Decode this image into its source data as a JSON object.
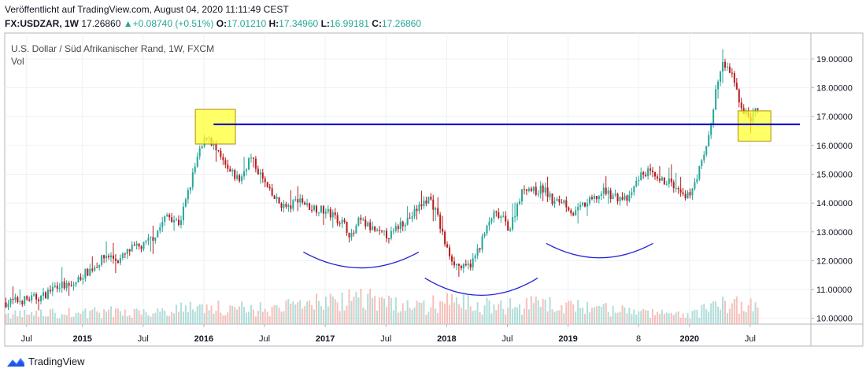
{
  "header": {
    "published": "Veröffentlicht auf TradingView.com, August 04, 2020 11:11:49 CEST",
    "symbol": "FX:USDZAR, 1W",
    "price": "17.26860",
    "change": "+0.08740 (+0.51%)",
    "o_label": "O:",
    "o_value": "17.01210",
    "h_label": "H:",
    "h_value": "17.34960",
    "l_label": "L:",
    "l_value": "16.99181",
    "c_label": "C:",
    "c_value": "17.26860"
  },
  "footer": {
    "brand": "TradingView"
  },
  "colors": {
    "up": "#26a69a",
    "down": "#b71c1c",
    "line": "#0000cc",
    "box": "#ffff33",
    "arc": "#1e22d4"
  },
  "chart_data": {
    "type": "candlestick",
    "title": "U.S. Dollar / Süd Afrikanischer Rand, 1W, FXCM",
    "subtitle": "Vol",
    "y_ticks": [
      "19.00000",
      "18.00000",
      "17.00000",
      "16.00000",
      "15.00000",
      "14.00000",
      "13.00000",
      "12.00000",
      "11.00000",
      "10.00000"
    ],
    "ylim": [
      9.8,
      19.9
    ],
    "x_ticks": [
      {
        "t": 2014.54,
        "label": "Jul"
      },
      {
        "t": 2015.0,
        "label": "2015"
      },
      {
        "t": 2015.5,
        "label": "Jul"
      },
      {
        "t": 2016.0,
        "label": "2016"
      },
      {
        "t": 2016.5,
        "label": "Jul"
      },
      {
        "t": 2017.0,
        "label": "2017"
      },
      {
        "t": 2017.5,
        "label": "Jul"
      },
      {
        "t": 2018.0,
        "label": "2018"
      },
      {
        "t": 2018.5,
        "label": "Jul"
      },
      {
        "t": 2019.0,
        "label": "2019"
      },
      {
        "t": 2019.58,
        "label": "8"
      },
      {
        "t": 2020.0,
        "label": "2020"
      },
      {
        "t": 2020.5,
        "label": "Jul"
      }
    ],
    "xlim": [
      2014.36,
      2021.0
    ],
    "price_path": [
      [
        2014.37,
        10.55
      ],
      [
        2014.54,
        10.65
      ],
      [
        2014.67,
        10.75
      ],
      [
        2014.8,
        11.2
      ],
      [
        2014.9,
        11.05
      ],
      [
        2015.0,
        11.5
      ],
      [
        2015.1,
        11.8
      ],
      [
        2015.2,
        12.2
      ],
      [
        2015.3,
        12.0
      ],
      [
        2015.4,
        12.4
      ],
      [
        2015.5,
        12.5
      ],
      [
        2015.6,
        12.9
      ],
      [
        2015.7,
        13.6
      ],
      [
        2015.8,
        13.3
      ],
      [
        2015.88,
        14.5
      ],
      [
        2015.95,
        15.6
      ],
      [
        2016.03,
        16.4
      ],
      [
        2016.1,
        15.8
      ],
      [
        2016.2,
        15.1
      ],
      [
        2016.3,
        14.8
      ],
      [
        2016.38,
        15.6
      ],
      [
        2016.45,
        15.1
      ],
      [
        2016.55,
        14.3
      ],
      [
        2016.62,
        14.0
      ],
      [
        2016.7,
        13.8
      ],
      [
        2016.78,
        14.2
      ],
      [
        2016.85,
        13.9
      ],
      [
        2016.95,
        13.8
      ],
      [
        2017.05,
        13.6
      ],
      [
        2017.15,
        13.3
      ],
      [
        2017.22,
        12.8
      ],
      [
        2017.28,
        13.4
      ],
      [
        2017.35,
        13.2
      ],
      [
        2017.45,
        12.9
      ],
      [
        2017.55,
        12.9
      ],
      [
        2017.62,
        13.3
      ],
      [
        2017.7,
        13.5
      ],
      [
        2017.78,
        13.9
      ],
      [
        2017.86,
        14.2
      ],
      [
        2017.92,
        13.6
      ],
      [
        2018.0,
        12.4
      ],
      [
        2018.07,
        11.9
      ],
      [
        2018.15,
        11.7
      ],
      [
        2018.22,
        12.0
      ],
      [
        2018.3,
        12.8
      ],
      [
        2018.38,
        13.6
      ],
      [
        2018.45,
        13.5
      ],
      [
        2018.52,
        13.1
      ],
      [
        2018.6,
        14.2
      ],
      [
        2018.65,
        14.6
      ],
      [
        2018.72,
        14.4
      ],
      [
        2018.8,
        14.5
      ],
      [
        2018.88,
        14.0
      ],
      [
        2018.96,
        14.1
      ],
      [
        2019.05,
        13.6
      ],
      [
        2019.12,
        13.9
      ],
      [
        2019.2,
        14.1
      ],
      [
        2019.3,
        14.4
      ],
      [
        2019.4,
        14.2
      ],
      [
        2019.5,
        14.1
      ],
      [
        2019.58,
        14.9
      ],
      [
        2019.66,
        15.1
      ],
      [
        2019.74,
        14.7
      ],
      [
        2019.82,
        14.8
      ],
      [
        2019.9,
        14.4
      ],
      [
        2019.97,
        14.1
      ],
      [
        2020.03,
        14.6
      ],
      [
        2020.12,
        15.6
      ],
      [
        2020.18,
        16.8
      ],
      [
        2020.22,
        18.0
      ],
      [
        2020.27,
        18.8
      ],
      [
        2020.33,
        18.6
      ],
      [
        2020.38,
        18.0
      ],
      [
        2020.43,
        17.3
      ],
      [
        2020.5,
        16.9
      ],
      [
        2020.54,
        17.2
      ],
      [
        2020.58,
        17.27
      ]
    ],
    "volume_path": [
      [
        2014.37,
        0.3
      ],
      [
        2015.0,
        0.35
      ],
      [
        2015.5,
        0.4
      ],
      [
        2016.0,
        0.55
      ],
      [
        2016.5,
        0.45
      ],
      [
        2017.0,
        0.7
      ],
      [
        2017.3,
        0.9
      ],
      [
        2017.6,
        0.6
      ],
      [
        2017.8,
        0.5
      ],
      [
        2018.0,
        0.75
      ],
      [
        2018.2,
        0.6
      ],
      [
        2018.5,
        0.55
      ],
      [
        2018.7,
        0.6
      ],
      [
        2019.0,
        0.55
      ],
      [
        2019.3,
        0.45
      ],
      [
        2019.6,
        0.35
      ],
      [
        2020.0,
        0.3
      ],
      [
        2020.3,
        0.65
      ],
      [
        2020.58,
        0.55
      ]
    ],
    "annotations": {
      "resistance_line": {
        "t1": 2016.08,
        "v1": 16.73,
        "t2": 2020.91,
        "v2": 16.73
      },
      "boxes": [
        {
          "t1": 2015.93,
          "t2": 2016.26,
          "v1": 16.05,
          "v2": 17.25
        },
        {
          "t1": 2020.4,
          "t2": 2020.67,
          "v1": 16.15,
          "v2": 17.2
        }
      ],
      "arcs": [
        {
          "t1": 2016.82,
          "t2": 2017.77,
          "v_end": 12.3,
          "v_bottom": 11.75
        },
        {
          "t1": 2017.82,
          "t2": 2018.75,
          "v_end": 11.4,
          "v_bottom": 10.8
        },
        {
          "t1": 2018.82,
          "t2": 2019.7,
          "v_end": 12.6,
          "v_bottom": 12.1
        }
      ]
    }
  }
}
